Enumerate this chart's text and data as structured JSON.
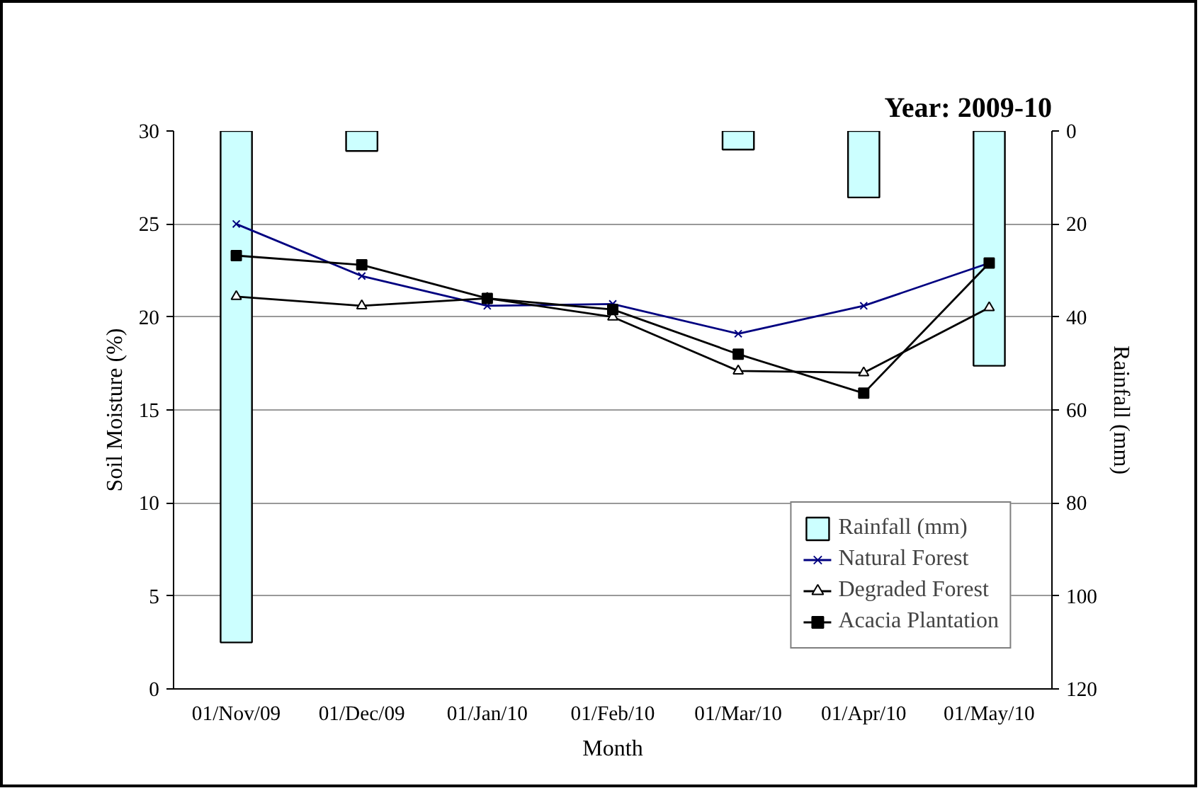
{
  "chart_data": {
    "type": "line",
    "title": "Year: 2009-10",
    "xlabel": "Month",
    "ylabel": "Soil Moisture (%)",
    "y2label": "Rainfall (mm)",
    "categories": [
      "01/Nov/09",
      "01/Dec/09",
      "01/Jan/10",
      "01/Feb/10",
      "01/Mar/10",
      "01/Apr/10",
      "01/May/10"
    ],
    "series": [
      {
        "name": "Rainfall (mm)",
        "type": "bar",
        "axis": "y2",
        "color": "#ccffff",
        "values": [
          110,
          4.3,
          null,
          null,
          4,
          14.3,
          50.5
        ]
      },
      {
        "name": "Natural Forest",
        "color": "#000080",
        "marker": "cross",
        "values": [
          25.0,
          22.2,
          20.6,
          20.7,
          19.1,
          20.6,
          22.9
        ]
      },
      {
        "name": "Degraded Forest",
        "color": "#000000",
        "marker": "triangle",
        "values": [
          21.1,
          20.6,
          21.0,
          20.0,
          17.1,
          17.0,
          20.5
        ]
      },
      {
        "name": "Acacia Plantation",
        "color": "#000000",
        "marker": "square",
        "values": [
          23.3,
          22.8,
          21.0,
          20.4,
          18.0,
          15.9,
          22.9
        ]
      }
    ],
    "ylim": [
      0,
      30
    ],
    "yticks": [
      0,
      5,
      10,
      15,
      20,
      25,
      30
    ],
    "y2lim": [
      120,
      0
    ],
    "y2ticks": [
      0,
      20,
      40,
      60,
      80,
      100,
      120
    ],
    "grid": "y",
    "legend": "bottom right",
    "line_style": "solid"
  }
}
